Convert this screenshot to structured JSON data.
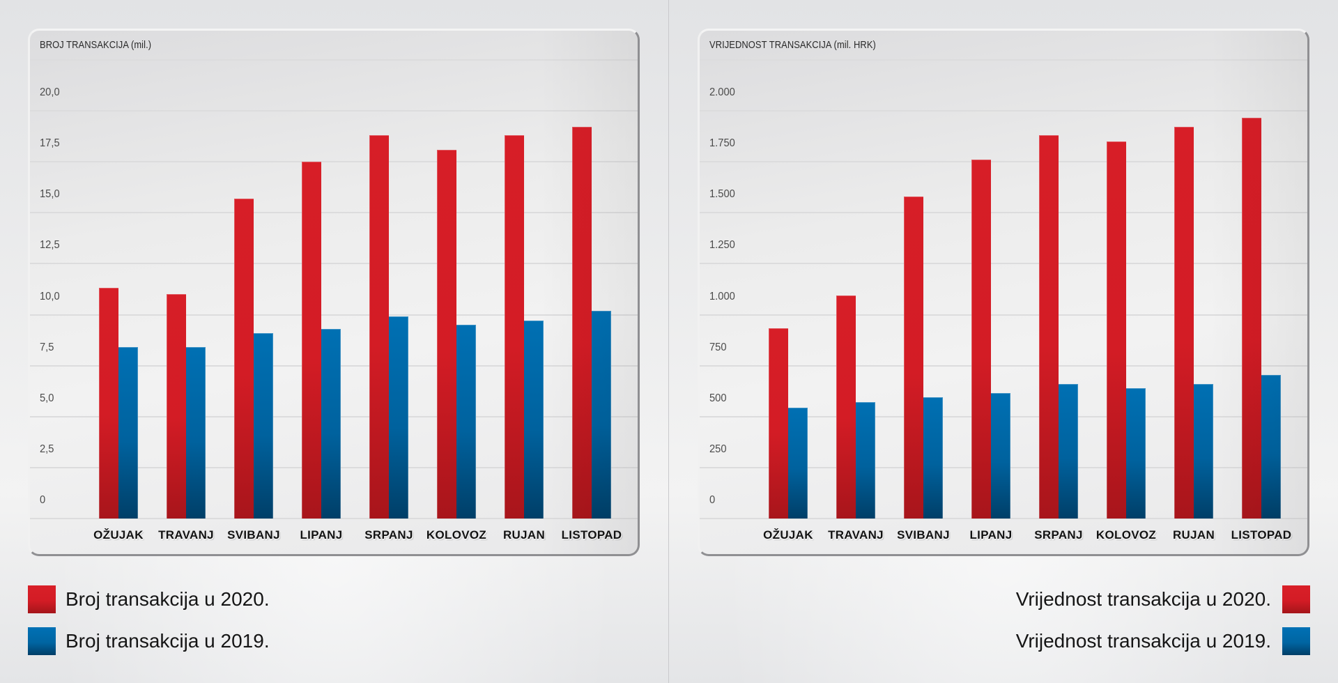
{
  "colors": {
    "series_2020": "#d31c25",
    "series_2019": "#0068a8",
    "background": "#ececec"
  },
  "chart_data": [
    {
      "type": "bar",
      "title": "BROJ TRANSAKCIJA (mil.)",
      "xlabel": "",
      "ylabel": "",
      "categories": [
        "OŽUJAK",
        "TRAVANJ",
        "SVIBANJ",
        "LIPANJ",
        "SRPANJ",
        "KOLOVOZ",
        "RUJAN",
        "LISTOPAD"
      ],
      "ylim": [
        0,
        20
      ],
      "yticks": [
        0,
        2.5,
        5,
        7.5,
        10,
        12.5,
        15,
        17.5,
        20
      ],
      "ytick_labels": [
        "0",
        "2,5",
        "5,0",
        "7,5",
        "10,0",
        "12,5",
        "15,0",
        "17,5",
        "20,0"
      ],
      "grid": true,
      "legend_position": "bottom-left",
      "series": [
        {
          "name": "Broj transakcija u 2020.",
          "color": "#d31c25",
          "values": [
            11.3,
            11.0,
            15.7,
            17.5,
            18.8,
            18.1,
            18.8,
            19.2
          ]
        },
        {
          "name": "Broj transakcija u 2019.",
          "color": "#0068a8",
          "values": [
            8.4,
            8.4,
            9.1,
            9.3,
            9.9,
            9.5,
            9.7,
            10.2
          ]
        }
      ]
    },
    {
      "type": "bar",
      "title": "VRIJEDNOST TRANSAKCIJA (mil. HRK)",
      "xlabel": "",
      "ylabel": "",
      "categories": [
        "OŽUJAK",
        "TRAVANJ",
        "SVIBANJ",
        "LIPANJ",
        "SRPANJ",
        "KOLOVOZ",
        "RUJAN",
        "LISTOPAD"
      ],
      "ylim": [
        0,
        2000
      ],
      "yticks": [
        0,
        250,
        500,
        750,
        1000,
        1250,
        1500,
        1750,
        2000
      ],
      "ytick_labels": [
        "0",
        "250",
        "500",
        "750",
        "1.000",
        "1.250",
        "1.500",
        "1.750",
        "2.000"
      ],
      "grid": true,
      "legend_position": "bottom-right",
      "series": [
        {
          "name": "Vrijednost transakcija u 2020.",
          "color": "#d31c25",
          "values": [
            935,
            1095,
            1580,
            1760,
            1880,
            1850,
            1920,
            1965
          ]
        },
        {
          "name": "Vrijednost transakcija u 2019.",
          "color": "#0068a8",
          "values": [
            545,
            570,
            595,
            615,
            660,
            640,
            660,
            705
          ]
        }
      ]
    }
  ]
}
